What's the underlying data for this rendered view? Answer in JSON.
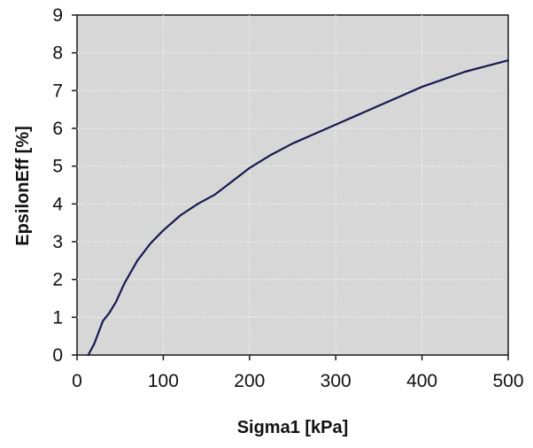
{
  "chart_data": {
    "type": "line",
    "title": "",
    "xlabel": "Sigma1 [kPa]",
    "ylabel": "EpsilonEff [%]",
    "xlim": [
      0,
      500
    ],
    "ylim": [
      0,
      9
    ],
    "x_ticks": [
      "0",
      "100",
      "200",
      "300",
      "400",
      "500"
    ],
    "y_ticks": [
      "0",
      "1",
      "2",
      "3",
      "4",
      "5",
      "6",
      "7",
      "8",
      "9"
    ],
    "grid": true,
    "legend": "none",
    "colors": {
      "plot_background": "#d7d7d7",
      "line": "#171a50",
      "grid": "#efefef",
      "axis": "#1a1a1a"
    },
    "series": [
      {
        "values": [
          [
            13,
            0.0
          ],
          [
            20,
            0.3
          ],
          [
            25,
            0.6
          ],
          [
            30,
            0.9
          ],
          [
            37,
            1.1
          ],
          [
            45,
            1.4
          ],
          [
            55,
            1.9
          ],
          [
            70,
            2.5
          ],
          [
            85,
            2.95
          ],
          [
            100,
            3.3
          ],
          [
            120,
            3.7
          ],
          [
            140,
            4.0
          ],
          [
            160,
            4.25
          ],
          [
            180,
            4.6
          ],
          [
            200,
            4.95
          ],
          [
            225,
            5.3
          ],
          [
            250,
            5.6
          ],
          [
            275,
            5.85
          ],
          [
            300,
            6.1
          ],
          [
            325,
            6.35
          ],
          [
            350,
            6.6
          ],
          [
            375,
            6.85
          ],
          [
            400,
            7.1
          ],
          [
            425,
            7.3
          ],
          [
            450,
            7.5
          ],
          [
            475,
            7.65
          ],
          [
            500,
            7.8
          ]
        ]
      }
    ]
  }
}
